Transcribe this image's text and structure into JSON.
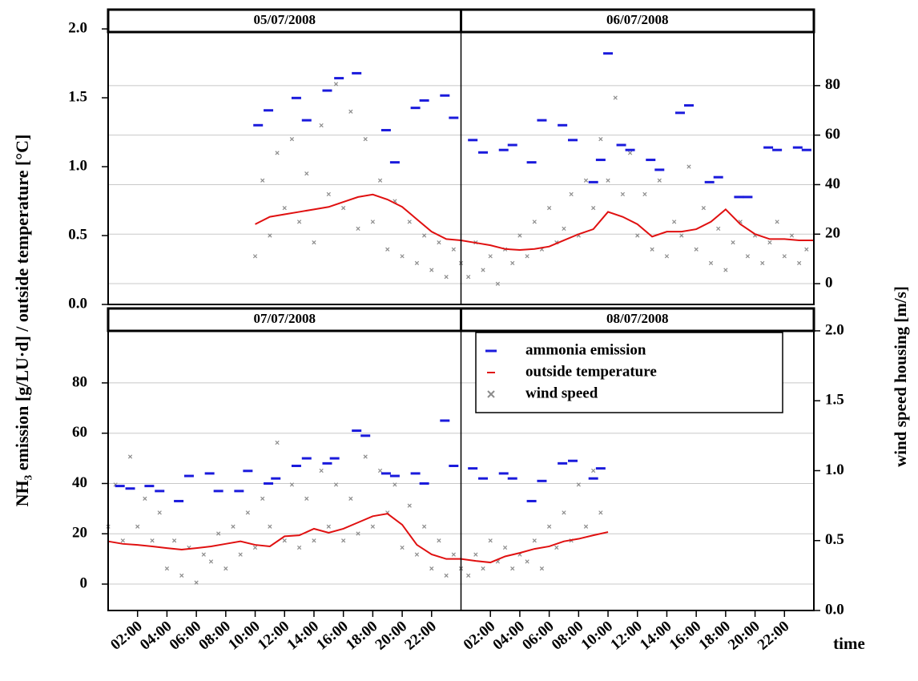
{
  "chart_data": {
    "type": "combo",
    "ylabel": "NH₃ emission [g/LU·d] / outside temperature  [°C]",
    "y2label": "wind speed housing [m/s]",
    "xlabel": "time",
    "xlim": [
      0,
      48
    ],
    "xticks": [
      {
        "value": 2,
        "label": "02:00"
      },
      {
        "value": 4,
        "label": "04:00"
      },
      {
        "value": 6,
        "label": "06:00"
      },
      {
        "value": 8,
        "label": "08:00"
      },
      {
        "value": 10,
        "label": "10:00"
      },
      {
        "value": 12,
        "label": "12:00"
      },
      {
        "value": 14,
        "label": "14:00"
      },
      {
        "value": 16,
        "label": "16:00"
      },
      {
        "value": 18,
        "label": "18:00"
      },
      {
        "value": 20,
        "label": "20:00"
      },
      {
        "value": 22,
        "label": "22:00"
      },
      {
        "value": 26,
        "label": "02:00"
      },
      {
        "value": 28,
        "label": "04:00"
      },
      {
        "value": 30,
        "label": "06:00"
      },
      {
        "value": 32,
        "label": "08:00"
      },
      {
        "value": 34,
        "label": "10:00"
      },
      {
        "value": 36,
        "label": "12:00"
      },
      {
        "value": 38,
        "label": "14:00"
      },
      {
        "value": 40,
        "label": "16:00"
      },
      {
        "value": 42,
        "label": "18:00"
      },
      {
        "value": 44,
        "label": "20:00"
      },
      {
        "value": 46,
        "label": "22:00"
      }
    ],
    "legend": "upper right",
    "grid": true,
    "series": [
      {
        "name": "ammonia emission",
        "color": "#1a1adc",
        "style": "dash"
      },
      {
        "name": "outside temperature",
        "color": "#e01010",
        "style": "line"
      },
      {
        "name": "wind speed",
        "color": "#8c8c8c",
        "style": "cross"
      }
    ],
    "panels": [
      {
        "strips": [
          "05/07/2008",
          "06/07/2008"
        ],
        "ylim": [
          0,
          2.14
        ],
        "yticks": [
          {
            "value": 0,
            "label": "0.0"
          },
          0.5,
          {
            "value": 1,
            "label": "1.0"
          },
          1.5,
          {
            "value": 2,
            "label": "2.0"
          }
        ],
        "y2lim": [
          -8.4,
          110.7
        ],
        "y2ticks": [
          0,
          20,
          40,
          60,
          80
        ],
        "grid_axis": "y2",
        "series": [
          {
            "axis": "y2",
            "x": [
              10.2,
              10.9,
              12.8,
              13.5,
              14.9,
              15.7,
              16.9,
              18.9,
              19.5,
              20.9,
              21.5,
              22.9,
              23.5,
              24.8,
              25.5,
              26.9,
              27.5,
              28.8,
              29.5,
              30.9,
              31.6,
              33.0,
              33.5,
              34.0,
              34.9,
              35.5,
              36.9,
              37.5,
              38.9,
              39.5,
              40.9,
              41.5,
              42.9,
              43.5,
              44.9,
              45.5,
              46.9,
              47.5
            ],
            "values": [
              64,
              70,
              75,
              66,
              78,
              83,
              85,
              62,
              49,
              71,
              74,
              76,
              67,
              58,
              53,
              54,
              56,
              49,
              66,
              64,
              58,
              41,
              50,
              93,
              56,
              54,
              50,
              46,
              69,
              72,
              41,
              43,
              35,
              35,
              55,
              54,
              55,
              54
            ]
          },
          {
            "axis": "y2",
            "x": [
              10,
              11,
              12,
              13,
              14,
              15,
              16,
              17,
              18,
              19,
              20,
              21,
              22,
              23,
              24,
              25,
              26,
              27,
              28,
              29,
              30,
              31,
              32,
              33,
              34,
              35,
              36,
              37,
              38,
              39,
              40,
              41,
              42,
              43,
              44,
              45,
              46,
              47,
              48
            ],
            "values": [
              24,
              27,
              28,
              29,
              30,
              31,
              33,
              35,
              36,
              34,
              31,
              26,
              21,
              18,
              17.5,
              16.5,
              15.5,
              14,
              13.6,
              14,
              15,
              17.5,
              20,
              22,
              29,
              27,
              24,
              19,
              21,
              21,
              22,
              25,
              30,
              24,
              20,
              18,
              18,
              17.5,
              17.5
            ]
          },
          {
            "axis": "y",
            "x": [
              10,
              10.5,
              11,
              11.5,
              12,
              12.5,
              13,
              13.5,
              14,
              14.5,
              15,
              15.5,
              16,
              16.5,
              17,
              17.5,
              18,
              18.5,
              19,
              19.5,
              20,
              20.5,
              21,
              21.5,
              22,
              22.5,
              23,
              23.5,
              24,
              24.5,
              25,
              25.5,
              26,
              26.5,
              27,
              27.5,
              28,
              28.5,
              29,
              29.5,
              30,
              30.5,
              31,
              31.5,
              32,
              32.5,
              33,
              33.5,
              34,
              34.5,
              35,
              35.5,
              36,
              36.5,
              37,
              37.5,
              38,
              38.5,
              39,
              39.5,
              40,
              40.5,
              41,
              41.5,
              42,
              42.5,
              43,
              43.5,
              44,
              44.5,
              45,
              45.5,
              46,
              46.5,
              47,
              47.5
            ],
            "values": [
              0.35,
              0.9,
              0.5,
              1.1,
              0.7,
              1.2,
              0.6,
              0.95,
              0.45,
              1.3,
              0.8,
              1.6,
              0.7,
              1.4,
              0.55,
              1.2,
              0.6,
              0.9,
              0.4,
              0.75,
              0.35,
              0.6,
              0.3,
              0.5,
              0.25,
              0.45,
              0.2,
              0.4,
              0.3,
              0.2,
              0.45,
              0.25,
              0.35,
              0.15,
              0.4,
              0.3,
              0.5,
              0.35,
              0.6,
              0.4,
              0.7,
              0.45,
              0.55,
              0.8,
              0.5,
              0.9,
              0.7,
              1.2,
              0.9,
              1.5,
              0.8,
              1.1,
              0.5,
              0.8,
              0.4,
              0.9,
              0.35,
              0.6,
              0.5,
              1.0,
              0.4,
              0.7,
              0.3,
              0.55,
              0.25,
              0.45,
              0.6,
              0.35,
              0.5,
              0.3,
              0.45,
              0.6,
              0.35,
              0.5,
              0.3,
              0.4
            ]
          }
        ]
      },
      {
        "strips": [
          "07/07/2008",
          "08/07/2008"
        ],
        "ylim": [
          -10.5,
          109.6
        ],
        "yticks": [
          0,
          20,
          40,
          60,
          80
        ],
        "y2lim": [
          0,
          2.16
        ],
        "y2ticks": [
          {
            "value": 0,
            "label": "0.0"
          },
          0.5,
          {
            "value": 1,
            "label": "1.0"
          },
          1.5,
          {
            "value": 2,
            "label": "2.0"
          }
        ],
        "grid_axis": "y",
        "series": [
          {
            "axis": "y",
            "x": [
              0.8,
              1.5,
              2.8,
              3.5,
              4.8,
              5.5,
              6.9,
              7.5,
              8.9,
              9.5,
              10.9,
              11.4,
              12.8,
              13.5,
              14.9,
              15.4,
              16.9,
              17.5,
              18.9,
              19.5,
              20.9,
              21.5,
              22.9,
              23.5,
              24.8,
              25.5,
              26.9,
              27.5,
              28.8,
              29.5,
              30.9,
              31.6,
              33.0,
              33.5
            ],
            "values": [
              39,
              38,
              39,
              37,
              33,
              43,
              44,
              37,
              37,
              45,
              40,
              42,
              47,
              50,
              48,
              50,
              61,
              59,
              44,
              43,
              44,
              40,
              65,
              47,
              46,
              42,
              44,
              42,
              33,
              41,
              48,
              49,
              42,
              46
            ]
          },
          {
            "axis": "y",
            "x": [
              0,
              1,
              2,
              3,
              4,
              5,
              6,
              7,
              8,
              9,
              10,
              11,
              12,
              13,
              14,
              15,
              16,
              17,
              18,
              19,
              20,
              21,
              22,
              23,
              24,
              25,
              26,
              27,
              28,
              29,
              30,
              31,
              32,
              33,
              34
            ],
            "values": [
              17,
              16,
              15.6,
              15,
              14.3,
              13.7,
              14.3,
              15,
              16,
              17,
              15.6,
              15,
              19,
              19.4,
              22,
              20.4,
              22,
              24.5,
              27,
              28,
              23.6,
              15.6,
              11.8,
              10,
              10,
              9.2,
              8.6,
              11,
              12.4,
              14,
              15,
              17,
              18,
              19.4,
              20.7
            ]
          },
          {
            "axis": "y2",
            "x": [
              0,
              0.5,
              1,
              1.5,
              2,
              2.5,
              3,
              3.5,
              4,
              4.5,
              5,
              5.5,
              6,
              6.5,
              7,
              7.5,
              8,
              8.5,
              9,
              9.5,
              10,
              10.5,
              11,
              11.5,
              12,
              12.5,
              13,
              13.5,
              14,
              14.5,
              15,
              15.5,
              16,
              16.5,
              17,
              17.5,
              18,
              18.5,
              19,
              19.5,
              20,
              20.5,
              21,
              21.5,
              22,
              22.5,
              23,
              23.5,
              24,
              24.5,
              25,
              25.5,
              26,
              26.5,
              27,
              27.5,
              28,
              28.5,
              29,
              29.5,
              30,
              30.5,
              31,
              31.5,
              32,
              32.5,
              33,
              33.5
            ],
            "values": [
              0.6,
              0.9,
              0.5,
              1.1,
              0.6,
              0.8,
              0.5,
              0.7,
              0.3,
              0.5,
              0.25,
              0.45,
              0.2,
              0.4,
              0.35,
              0.55,
              0.3,
              0.6,
              0.4,
              0.7,
              0.45,
              0.8,
              0.6,
              1.2,
              0.5,
              0.9,
              0.45,
              0.8,
              0.5,
              1.0,
              0.6,
              0.9,
              0.5,
              0.8,
              0.55,
              1.1,
              0.6,
              1.0,
              0.7,
              0.9,
              0.45,
              0.75,
              0.4,
              0.6,
              0.3,
              0.5,
              0.25,
              0.4,
              0.3,
              0.25,
              0.4,
              0.3,
              0.5,
              0.35,
              0.45,
              0.3,
              0.4,
              0.35,
              0.5,
              0.3,
              0.6,
              0.45,
              0.7,
              0.5,
              0.9,
              0.6,
              1.0,
              0.7
            ]
          }
        ]
      }
    ]
  }
}
